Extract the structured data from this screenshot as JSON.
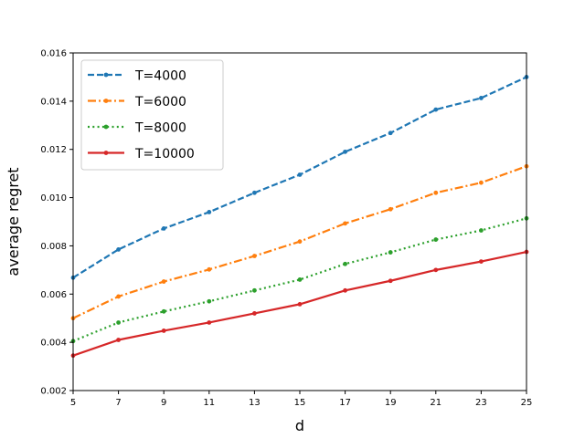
{
  "chart_data": {
    "type": "line",
    "title": "",
    "xlabel": "d",
    "ylabel": "average regret",
    "x": [
      5,
      7,
      9,
      11,
      13,
      15,
      17,
      19,
      21,
      23,
      25
    ],
    "xticks": [
      "5",
      "7",
      "9",
      "11",
      "13",
      "15",
      "17",
      "19",
      "21",
      "23",
      "25"
    ],
    "xlim": [
      5,
      25
    ],
    "ylim": [
      0.002,
      0.016
    ],
    "yticks": [
      "0.002",
      "0.004",
      "0.006",
      "0.008",
      "0.010",
      "0.012",
      "0.014",
      "0.016"
    ],
    "grid": false,
    "legend_position": "top-left",
    "series": [
      {
        "name": "T=4000",
        "color": "#1f77b4",
        "linestyle": "dashed",
        "values": [
          0.00668,
          0.00785,
          0.00872,
          0.0094,
          0.0102,
          0.01095,
          0.0119,
          0.01268,
          0.01365,
          0.01413,
          0.015
        ]
      },
      {
        "name": "T=6000",
        "color": "#ff7f0e",
        "linestyle": "dashdot",
        "values": [
          0.005,
          0.0059,
          0.00652,
          0.00702,
          0.00758,
          0.00818,
          0.00893,
          0.00952,
          0.0102,
          0.01062,
          0.0113
        ]
      },
      {
        "name": "T=8000",
        "color": "#2ca02c",
        "linestyle": "dotted",
        "values": [
          0.00405,
          0.00482,
          0.00528,
          0.0057,
          0.00615,
          0.0066,
          0.00725,
          0.00773,
          0.00826,
          0.00864,
          0.00914
        ]
      },
      {
        "name": "T=10000",
        "color": "#d62728",
        "linestyle": "solid",
        "values": [
          0.00345,
          0.0041,
          0.00448,
          0.00482,
          0.0052,
          0.00558,
          0.00615,
          0.00655,
          0.007,
          0.00735,
          0.00775
        ]
      }
    ]
  }
}
